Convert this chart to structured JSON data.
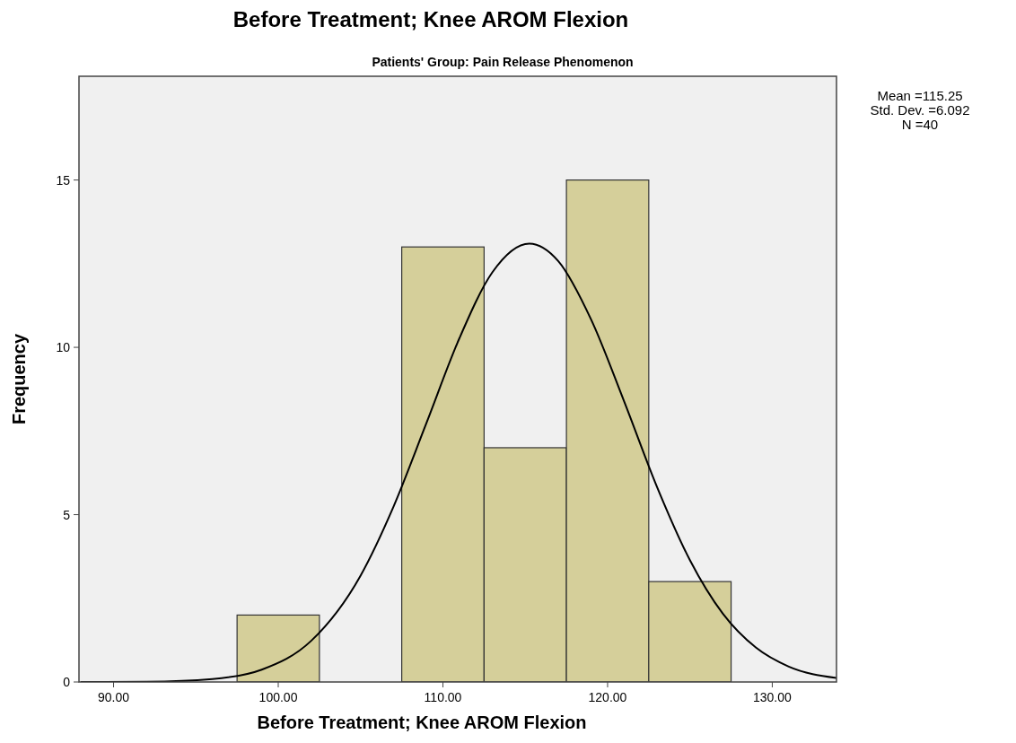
{
  "chart_data": {
    "type": "histogram",
    "title": "Before Treatment; Knee AROM Flexion",
    "subtitle": "Patients' Group: Pain Release Phenomenon",
    "xlabel": "Before Treatment; Knee AROM Flexion",
    "ylabel": "Frequency",
    "annotations": [
      "Mean =115.25",
      "Std. Dev. =6.092",
      "N =40"
    ],
    "xlim": [
      87.9,
      133.9
    ],
    "xticks": [
      {
        "value": 90,
        "label": "90.00"
      },
      {
        "value": 100,
        "label": "100.00"
      },
      {
        "value": 110,
        "label": "110.00"
      },
      {
        "value": 120,
        "label": "120.00"
      },
      {
        "value": 130,
        "label": "130.00"
      }
    ],
    "ylim": [
      0,
      18.1
    ],
    "yticks": [
      0,
      5,
      10,
      15
    ],
    "grid": false,
    "series": [
      {
        "color": "#d5cf9a",
        "bins": [
          97.5,
          102.5,
          107.5,
          112.5,
          117.5,
          122.5,
          127.5
        ],
        "values": [
          2,
          0,
          13,
          7,
          15,
          3
        ]
      },
      {
        "type": "line",
        "color": "#000000",
        "x": [
          88,
          92,
          96,
          99,
          102,
          105,
          107,
          109,
          111,
          113,
          115.25,
          117,
          119,
          121,
          123,
          125,
          127,
          129,
          131,
          133.9
        ],
        "values": [
          0,
          0.01,
          0.09,
          0.37,
          1.23,
          3.18,
          5.24,
          7.74,
          10.27,
          12.24,
          13.1,
          12.58,
          10.83,
          8.39,
          5.83,
          3.64,
          2.04,
          1.03,
          0.46,
          0.12
        ]
      }
    ]
  }
}
